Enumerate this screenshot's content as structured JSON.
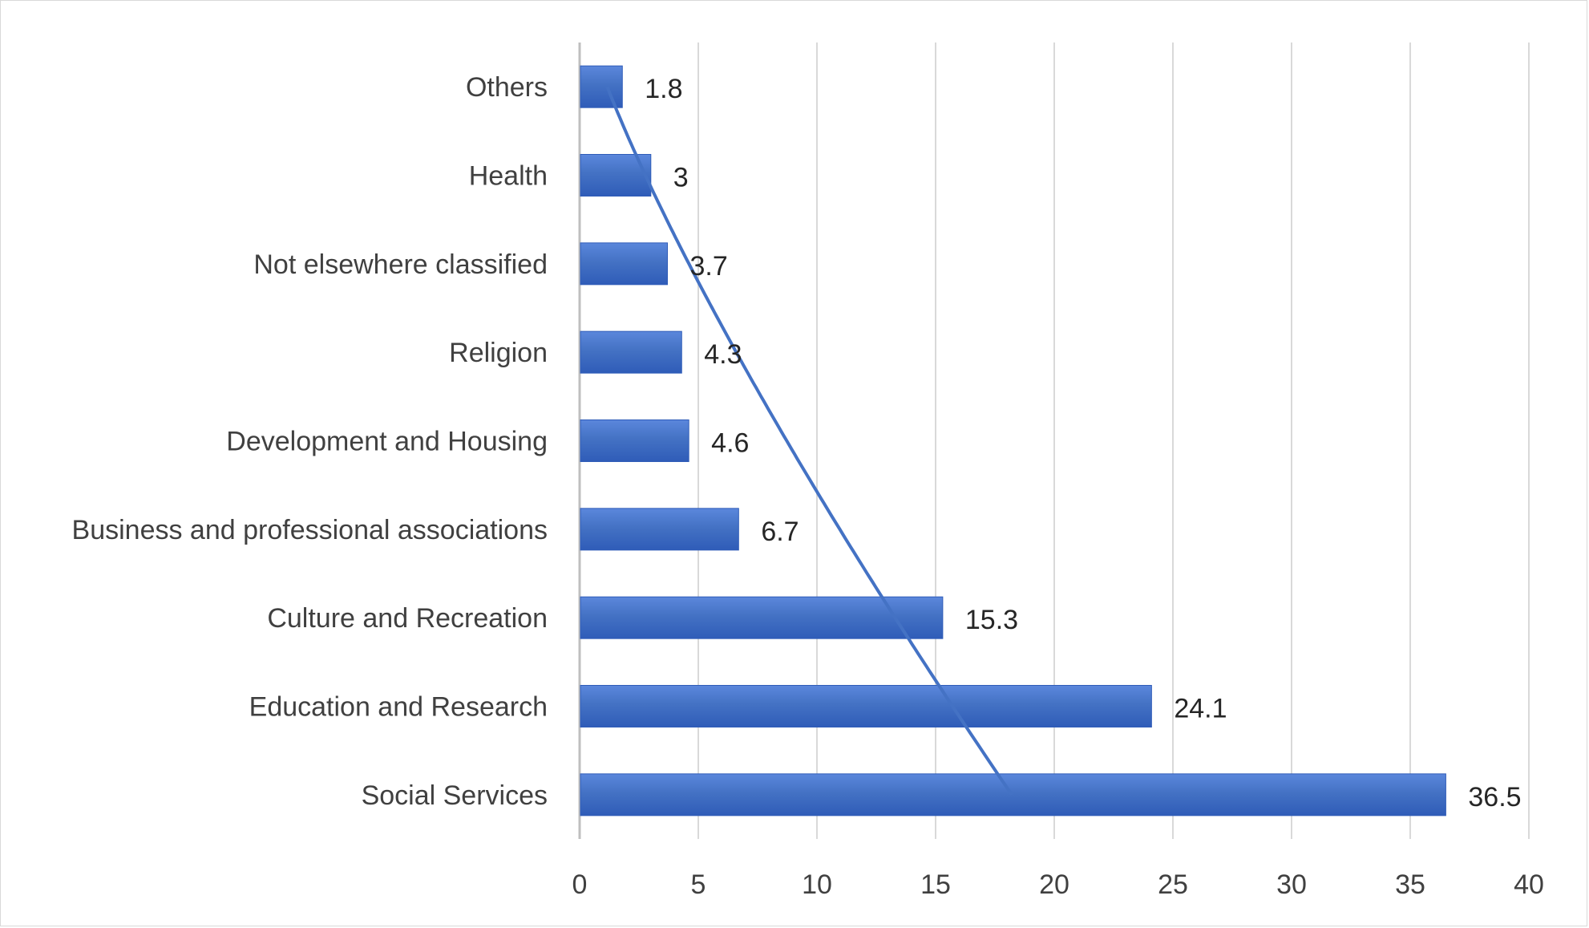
{
  "chart_data": {
    "type": "bar",
    "orientation": "horizontal",
    "categories": [
      "Social Services",
      "Education and Research",
      "Culture and Recreation",
      "Business and professional associations",
      "Development and Housing",
      "Religion",
      "Not elsewhere classified",
      "Health",
      "Others"
    ],
    "values": [
      36.5,
      24.1,
      15.3,
      6.7,
      4.6,
      4.3,
      3.7,
      3,
      1.8
    ],
    "data_labels": [
      "36.5",
      "24.1",
      "15.3",
      "6.7",
      "4.6",
      "4.3",
      "3.7",
      "3",
      "1.8"
    ],
    "xlim": [
      0,
      40
    ],
    "x_ticks": [
      0,
      5,
      10,
      15,
      20,
      25,
      30,
      35,
      40
    ],
    "x_tick_labels": [
      "0",
      "5",
      "10",
      "15",
      "20",
      "25",
      "30",
      "35",
      "40"
    ],
    "title": "",
    "xlabel": "",
    "ylabel": "",
    "grid": "vertical",
    "legend": "none",
    "trendline": "curve",
    "colors": {
      "bar": "#4472c4",
      "bar_light": "#5b87dc",
      "bar_dark": "#2f5cb8",
      "trendline": "#4472c4",
      "grid": "#d9d9d9",
      "axis": "#d9d9d9",
      "text": "#404040"
    }
  }
}
